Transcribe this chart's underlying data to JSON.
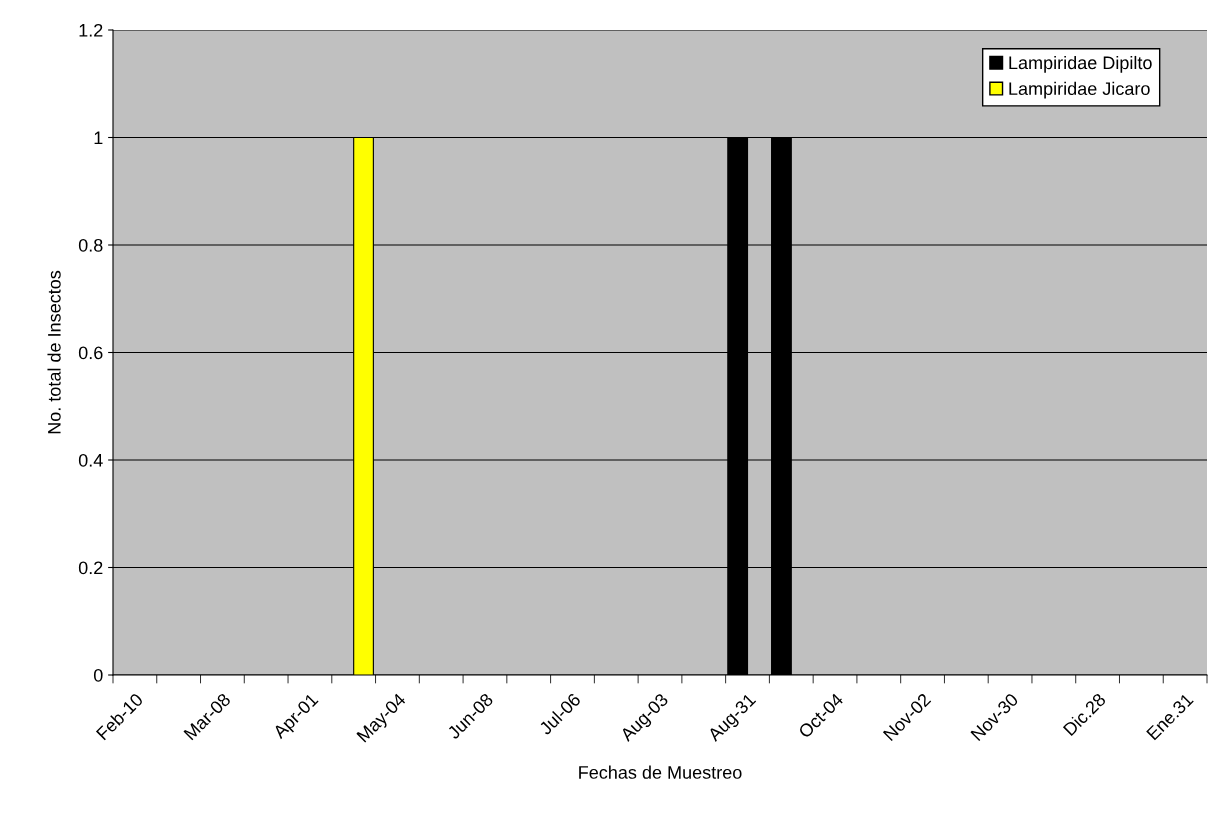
{
  "chart_data": {
    "type": "bar",
    "xlabel": "Fechas de Muestreo",
    "ylabel": "No. total de Insectos",
    "categories": [
      "Feb-10",
      null,
      "Mar-08",
      null,
      "Apr-01",
      null,
      "May-04",
      null,
      "Jun-08",
      null,
      "Jul-06",
      null,
      "Aug-03",
      null,
      "Aug-31",
      null,
      "Oct-04",
      null,
      "Nov-02",
      null,
      "Nov-30",
      null,
      "Dic.28",
      null,
      "Ene.31"
    ],
    "series": [
      {
        "name": "Lampiridae Dipilto",
        "color": "#000000",
        "values": [
          0,
          0,
          0,
          0,
          0,
          0,
          0,
          0,
          0,
          0,
          0,
          0,
          0,
          0,
          1,
          1,
          0,
          0,
          0,
          0,
          0,
          0,
          0,
          0,
          0
        ]
      },
      {
        "name": "Lampiridae Jicaro",
        "color": "#ffff00",
        "values": [
          0,
          0,
          0,
          0,
          0,
          1,
          0,
          0,
          0,
          0,
          0,
          0,
          0,
          0,
          0,
          0,
          0,
          0,
          0,
          0,
          0,
          0,
          0,
          0,
          0
        ]
      }
    ],
    "ylim": [
      0,
      1.2
    ],
    "yticks": [
      0,
      0.2,
      0.4,
      0.6,
      0.8,
      1,
      1.2
    ],
    "grid": "y",
    "legend": "top right"
  }
}
